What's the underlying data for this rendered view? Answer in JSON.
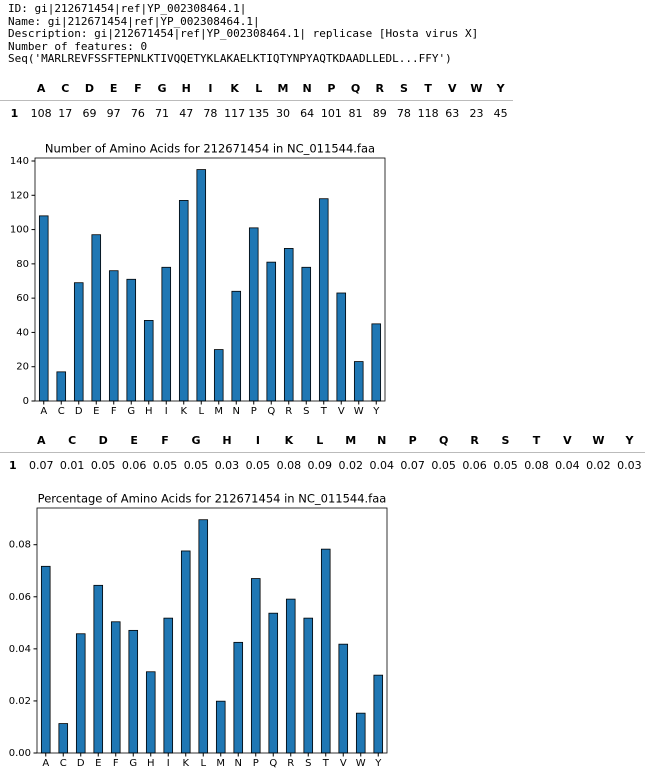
{
  "output": {
    "lines": [
      "ID: gi|212671454|ref|YP_002308464.1|",
      "Name: gi|212671454|ref|YP_002308464.1|",
      "Description: gi|212671454|ref|YP_002308464.1| replicase [Hosta virus X]",
      "Number of features: 0",
      "Seq('MARLREVFSSFTEPNLKTIVQQETYKLAKAELKTIQTYNPYAQTKDAADLLEDL...FFY')"
    ]
  },
  "tables": [
    {
      "columns": [
        "A",
        "C",
        "D",
        "E",
        "F",
        "G",
        "H",
        "I",
        "K",
        "L",
        "M",
        "N",
        "P",
        "Q",
        "R",
        "S",
        "T",
        "V",
        "W",
        "Y"
      ],
      "index": [
        1
      ],
      "rows": [
        [
          108,
          17,
          69,
          97,
          76,
          71,
          47,
          78,
          117,
          135,
          30,
          64,
          101,
          81,
          89,
          78,
          118,
          63,
          23,
          45
        ]
      ]
    },
    {
      "columns": [
        "A",
        "C",
        "D",
        "E",
        "F",
        "G",
        "H",
        "I",
        "K",
        "L",
        "M",
        "N",
        "P",
        "Q",
        "R",
        "S",
        "T",
        "V",
        "W",
        "Y"
      ],
      "index": [
        1
      ],
      "rows": [
        [
          0.07,
          0.01,
          0.05,
          0.06,
          0.05,
          0.05,
          0.03,
          0.05,
          0.08,
          0.09,
          0.02,
          0.04,
          0.07,
          0.05,
          0.06,
          0.05,
          0.08,
          0.04,
          0.02,
          0.03
        ]
      ]
    }
  ],
  "chart_data": [
    {
      "type": "bar",
      "title": "Number of Amino Acids for 212671454 in NC_011544.faa",
      "categories": [
        "A",
        "C",
        "D",
        "E",
        "F",
        "G",
        "H",
        "I",
        "K",
        "L",
        "M",
        "N",
        "P",
        "Q",
        "R",
        "S",
        "T",
        "V",
        "W",
        "Y"
      ],
      "values": [
        108,
        17,
        69,
        97,
        76,
        71,
        47,
        78,
        117,
        135,
        30,
        64,
        101,
        81,
        89,
        78,
        118,
        63,
        23,
        45
      ],
      "color": "#1f77b4",
      "edgecolor": "#000000",
      "ylim": [
        0,
        141.75
      ],
      "yticks": [
        0,
        20,
        40,
        60,
        80,
        100,
        120,
        140
      ]
    },
    {
      "type": "bar",
      "title": "Percentage of Amino Acids for 212671454 in NC_011544.faa",
      "categories": [
        "A",
        "C",
        "D",
        "E",
        "F",
        "G",
        "H",
        "I",
        "K",
        "L",
        "M",
        "N",
        "P",
        "Q",
        "R",
        "S",
        "T",
        "V",
        "W",
        "Y"
      ],
      "values": [
        0.0717,
        0.0113,
        0.0458,
        0.0644,
        0.0504,
        0.0471,
        0.0312,
        0.0518,
        0.0776,
        0.0896,
        0.0199,
        0.0425,
        0.067,
        0.0537,
        0.0591,
        0.0518,
        0.0783,
        0.0418,
        0.0153,
        0.0299
      ],
      "color": "#1f77b4",
      "edgecolor": "#000000",
      "ylim": [
        0,
        0.0941
      ],
      "yticks": [
        {
          "value": 0,
          "label": "0.00"
        },
        {
          "value": 0.02,
          "label": "0.02"
        },
        {
          "value": 0.04,
          "label": "0.04"
        },
        {
          "value": 0.06,
          "label": "0.06"
        },
        {
          "value": 0.08,
          "label": "0.08"
        }
      ]
    }
  ]
}
